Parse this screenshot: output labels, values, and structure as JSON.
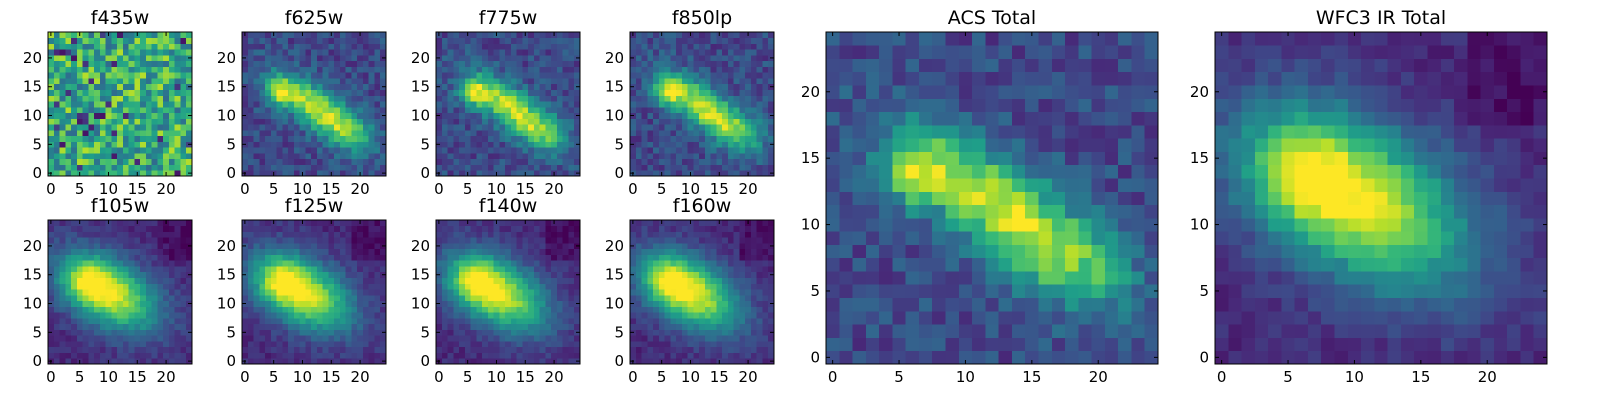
{
  "chart_data": [
    {
      "type": "heatmap",
      "title": "f435w",
      "xticks": [
        0,
        5,
        10,
        15,
        20
      ],
      "yticks": [
        0,
        5,
        10,
        15,
        20
      ],
      "xlim": [
        -0.5,
        24.5
      ],
      "ylim": [
        -0.5,
        24.5
      ],
      "colormap": "viridis",
      "model": "noise",
      "seed": 11
    },
    {
      "type": "heatmap",
      "title": "f625w",
      "xticks": [
        0,
        5,
        10,
        15,
        20
      ],
      "yticks": [
        0,
        5,
        10,
        15,
        20
      ],
      "xlim": [
        -0.5,
        24.5
      ],
      "ylim": [
        -0.5,
        24.5
      ],
      "colormap": "viridis",
      "model": "acs",
      "seed": 23
    },
    {
      "type": "heatmap",
      "title": "f775w",
      "xticks": [
        0,
        5,
        10,
        15,
        20
      ],
      "yticks": [
        0,
        5,
        10,
        15,
        20
      ],
      "xlim": [
        -0.5,
        24.5
      ],
      "ylim": [
        -0.5,
        24.5
      ],
      "colormap": "viridis",
      "model": "acs",
      "seed": 37
    },
    {
      "type": "heatmap",
      "title": "f850lp",
      "xticks": [
        0,
        5,
        10,
        15,
        20
      ],
      "yticks": [
        0,
        5,
        10,
        15,
        20
      ],
      "xlim": [
        -0.5,
        24.5
      ],
      "ylim": [
        -0.5,
        24.5
      ],
      "colormap": "viridis",
      "model": "acs",
      "seed": 41
    },
    {
      "type": "heatmap",
      "title": "f105w",
      "xticks": [
        0,
        5,
        10,
        15,
        20
      ],
      "yticks": [
        0,
        5,
        10,
        15,
        20
      ],
      "xlim": [
        -0.5,
        24.5
      ],
      "ylim": [
        -0.5,
        24.5
      ],
      "colormap": "viridis",
      "model": "ir",
      "seed": 53
    },
    {
      "type": "heatmap",
      "title": "f125w",
      "xticks": [
        0,
        5,
        10,
        15,
        20
      ],
      "yticks": [
        0,
        5,
        10,
        15,
        20
      ],
      "xlim": [
        -0.5,
        24.5
      ],
      "ylim": [
        -0.5,
        24.5
      ],
      "colormap": "viridis",
      "model": "ir",
      "seed": 67
    },
    {
      "type": "heatmap",
      "title": "f140w",
      "xticks": [
        0,
        5,
        10,
        15,
        20
      ],
      "yticks": [
        0,
        5,
        10,
        15,
        20
      ],
      "xlim": [
        -0.5,
        24.5
      ],
      "ylim": [
        -0.5,
        24.5
      ],
      "colormap": "viridis",
      "model": "ir",
      "seed": 79
    },
    {
      "type": "heatmap",
      "title": "f160w",
      "xticks": [
        0,
        5,
        10,
        15,
        20
      ],
      "yticks": [
        0,
        5,
        10,
        15,
        20
      ],
      "xlim": [
        -0.5,
        24.5
      ],
      "ylim": [
        -0.5,
        24.5
      ],
      "colormap": "viridis",
      "model": "ir",
      "seed": 83
    },
    {
      "type": "heatmap",
      "title": "ACS Total",
      "xticks": [
        0,
        5,
        10,
        15,
        20
      ],
      "yticks": [
        0,
        5,
        10,
        15,
        20
      ],
      "xlim": [
        -0.5,
        24.5
      ],
      "ylim": [
        -0.5,
        24.5
      ],
      "colormap": "viridis",
      "model": "acs",
      "seed": 97
    },
    {
      "type": "heatmap",
      "title": "WFC3 IR Total",
      "xticks": [
        0,
        5,
        10,
        15,
        20
      ],
      "yticks": [
        0,
        5,
        10,
        15,
        20
      ],
      "xlim": [
        -0.5,
        24.5
      ],
      "ylim": [
        -0.5,
        24.5
      ],
      "colormap": "viridis",
      "model": "ir",
      "seed": 101
    }
  ]
}
